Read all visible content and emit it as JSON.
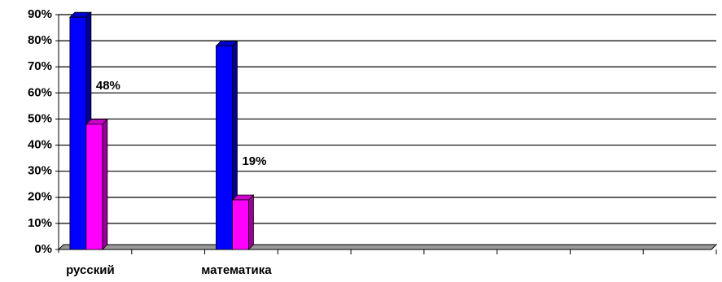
{
  "chart_data": {
    "type": "bar",
    "categories": [
      "русский",
      null,
      "математика",
      null,
      null,
      null,
      null,
      null,
      null
    ],
    "series": [
      {
        "color": "#0000ff",
        "values": [
          89,
          null,
          78,
          null,
          null,
          null,
          null,
          null,
          null
        ]
      },
      {
        "color": "#ff00ff",
        "values": [
          48,
          null,
          19,
          null,
          null,
          null,
          null,
          null,
          null
        ],
        "value_labels": [
          "48%",
          null,
          "19%",
          null,
          null,
          null,
          null,
          null,
          null
        ]
      }
    ],
    "ylim": [
      0,
      90
    ],
    "yticks": [
      {
        "value": 0,
        "label": "0%"
      },
      {
        "value": 10,
        "label": "10%"
      },
      {
        "value": 20,
        "label": "20%"
      },
      {
        "value": 30,
        "label": "30%"
      },
      {
        "value": 40,
        "label": "40%"
      },
      {
        "value": 50,
        "label": "50%"
      },
      {
        "value": 60,
        "label": "60%"
      },
      {
        "value": 70,
        "label": "70%"
      },
      {
        "value": 80,
        "label": "80%"
      },
      {
        "value": 90,
        "label": "90%"
      }
    ],
    "grid": true
  }
}
